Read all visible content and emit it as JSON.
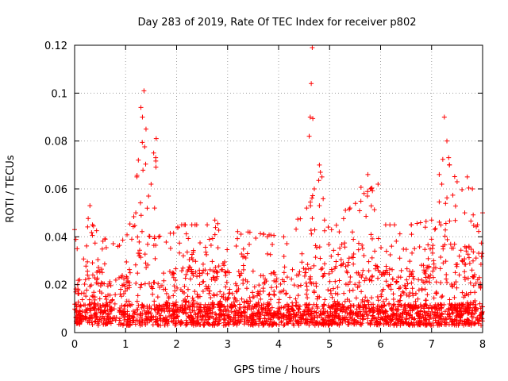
{
  "chart_data": {
    "type": "scatter",
    "title": "Day 283 of 2019, Rate Of TEC Index for receiver p802",
    "xlabel": "GPS time / hours",
    "ylabel": "ROTI / TECUs",
    "xlim": [
      0,
      8
    ],
    "ylim": [
      0,
      0.12
    ],
    "grid": true,
    "marker": "+",
    "color": "#ff0000",
    "x_ticks": [
      0,
      1,
      2,
      3,
      4,
      5,
      6,
      7,
      8
    ],
    "x_tick_labels": [
      "0",
      "1",
      "2",
      "3",
      "4",
      "5",
      "6",
      "7",
      "8"
    ],
    "y_ticks": [
      0,
      0.02,
      0.04,
      0.06,
      0.08,
      0.1,
      0.12
    ],
    "y_tick_labels": [
      "0",
      "0.02",
      "0.04",
      "0.06",
      "0.08",
      "0.1",
      "0.12"
    ],
    "series": [
      {
        "name": "ROTI",
        "envelope_points": [
          {
            "x": 0.0,
            "y": 0.043
          },
          {
            "x": 0.05,
            "y": 0.035
          },
          {
            "x": 0.1,
            "y": 0.022
          },
          {
            "x": 0.3,
            "y": 0.053
          },
          {
            "x": 0.35,
            "y": 0.045
          },
          {
            "x": 0.6,
            "y": 0.039
          },
          {
            "x": 0.85,
            "y": 0.036
          },
          {
            "x": 1.2,
            "y": 0.05
          },
          {
            "x": 1.22,
            "y": 0.065
          },
          {
            "x": 1.25,
            "y": 0.072
          },
          {
            "x": 1.3,
            "y": 0.094
          },
          {
            "x": 1.33,
            "y": 0.09
          },
          {
            "x": 1.36,
            "y": 0.101
          },
          {
            "x": 1.4,
            "y": 0.085
          },
          {
            "x": 1.45,
            "y": 0.057
          },
          {
            "x": 1.5,
            "y": 0.062
          },
          {
            "x": 1.55,
            "y": 0.075
          },
          {
            "x": 1.6,
            "y": 0.081
          },
          {
            "x": 1.65,
            "y": 0.04
          },
          {
            "x": 2.1,
            "y": 0.045
          },
          {
            "x": 2.6,
            "y": 0.045
          },
          {
            "x": 2.75,
            "y": 0.047
          },
          {
            "x": 3.4,
            "y": 0.042
          },
          {
            "x": 4.1,
            "y": 0.04
          },
          {
            "x": 4.55,
            "y": 0.052
          },
          {
            "x": 4.6,
            "y": 0.082
          },
          {
            "x": 4.62,
            "y": 0.09
          },
          {
            "x": 4.64,
            "y": 0.104
          },
          {
            "x": 4.66,
            "y": 0.119
          },
          {
            "x": 4.7,
            "y": 0.06
          },
          {
            "x": 4.8,
            "y": 0.07
          },
          {
            "x": 4.85,
            "y": 0.065
          },
          {
            "x": 4.9,
            "y": 0.047
          },
          {
            "x": 5.4,
            "y": 0.052
          },
          {
            "x": 5.75,
            "y": 0.066
          },
          {
            "x": 5.8,
            "y": 0.06
          },
          {
            "x": 5.95,
            "y": 0.062
          },
          {
            "x": 6.1,
            "y": 0.045
          },
          {
            "x": 6.6,
            "y": 0.045
          },
          {
            "x": 7.0,
            "y": 0.047
          },
          {
            "x": 7.15,
            "y": 0.066
          },
          {
            "x": 7.2,
            "y": 0.062
          },
          {
            "x": 7.25,
            "y": 0.09
          },
          {
            "x": 7.3,
            "y": 0.08
          },
          {
            "x": 7.35,
            "y": 0.07
          },
          {
            "x": 7.5,
            "y": 0.063
          },
          {
            "x": 7.7,
            "y": 0.065
          },
          {
            "x": 7.8,
            "y": 0.06
          },
          {
            "x": 7.9,
            "y": 0.045
          },
          {
            "x": 8.0,
            "y": 0.05
          }
        ],
        "gaps": [
          [
            0.82,
            0.86
          ]
        ]
      }
    ]
  }
}
